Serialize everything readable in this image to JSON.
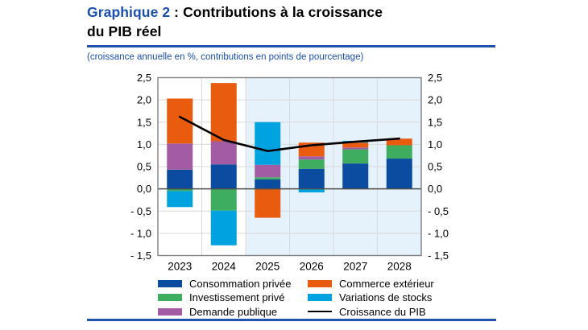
{
  "header": {
    "title_prefix": "Graphique 2",
    "title_line1_rest": " : Contributions à la croissance",
    "title_line2": "du PIB réel",
    "subtitle": "(croissance annuelle en %, contributions en points de pourcentage)"
  },
  "chart_data": {
    "type": "bar",
    "subtype": "stacked-bar-with-line",
    "title": "Graphique 2 : Contributions à la croissance du PIB réel",
    "subtitle": "(croissance annuelle en %, contributions en points de pourcentage)",
    "categories": [
      "2023",
      "2024",
      "2025",
      "2026",
      "2027",
      "2028"
    ],
    "series": [
      {
        "name": "Consommation privée",
        "color": "#0B4BA0",
        "values": [
          0.43,
          0.55,
          0.21,
          0.45,
          0.57,
          0.68
        ]
      },
      {
        "name": "Investissement privé",
        "color": "#3EAD5F",
        "values": [
          -0.05,
          -0.49,
          0.05,
          0.21,
          0.32,
          0.3
        ]
      },
      {
        "name": "Demande publique",
        "color": "#A35CA4",
        "values": [
          0.59,
          0.52,
          0.28,
          0.07,
          0.04,
          0.0
        ]
      },
      {
        "name": "Commerce extérieur",
        "color": "#E95B0E",
        "values": [
          1.01,
          1.31,
          -0.65,
          0.31,
          0.11,
          0.15
        ]
      },
      {
        "name": "Variations de stocks",
        "color": "#00A2E0",
        "values": [
          -0.36,
          -0.78,
          0.96,
          -0.08,
          0.04,
          0.0
        ]
      }
    ],
    "line": {
      "name": "Croissance du PIB",
      "color": "#000000",
      "values": [
        1.62,
        1.1,
        0.85,
        0.98,
        1.06,
        1.13
      ]
    },
    "ylim": [
      -1.5,
      2.5
    ],
    "yticks": [
      {
        "value": 2.5,
        "label": "2,5"
      },
      {
        "value": 2.0,
        "label": "2,0"
      },
      {
        "value": 1.5,
        "label": "1,5"
      },
      {
        "value": 1.0,
        "label": "1,0"
      },
      {
        "value": 0.5,
        "label": "0,5"
      },
      {
        "value": 0.0,
        "label": "0,0"
      },
      {
        "value": -0.5,
        "label": "- 0,5"
      },
      {
        "value": -1.0,
        "label": "- 1,0"
      },
      {
        "value": -1.5,
        "label": "- 1,5"
      }
    ],
    "forecast_start_index": 2,
    "grid": true,
    "legend_position": "bottom",
    "colors": {
      "forecast_bg": "#E5F1FB",
      "gridline": "#D9D9D9",
      "frame": "#808080",
      "zero_line": "#4D4D4D",
      "accent_blue": "#1A4FAD"
    }
  },
  "legend": {
    "items": [
      {
        "label": "Consommation privée",
        "color": "#0B4BA0",
        "type": "box"
      },
      {
        "label": "Commerce extérieur",
        "color": "#E95B0E",
        "type": "box"
      },
      {
        "label": "Investissement privé",
        "color": "#3EAD5F",
        "type": "box"
      },
      {
        "label": "Variations de stocks",
        "color": "#00A2E0",
        "type": "box"
      },
      {
        "label": "Demande publique",
        "color": "#A35CA4",
        "type": "box"
      },
      {
        "label": "Croissance du PIB",
        "color": "#000000",
        "type": "line"
      }
    ]
  }
}
